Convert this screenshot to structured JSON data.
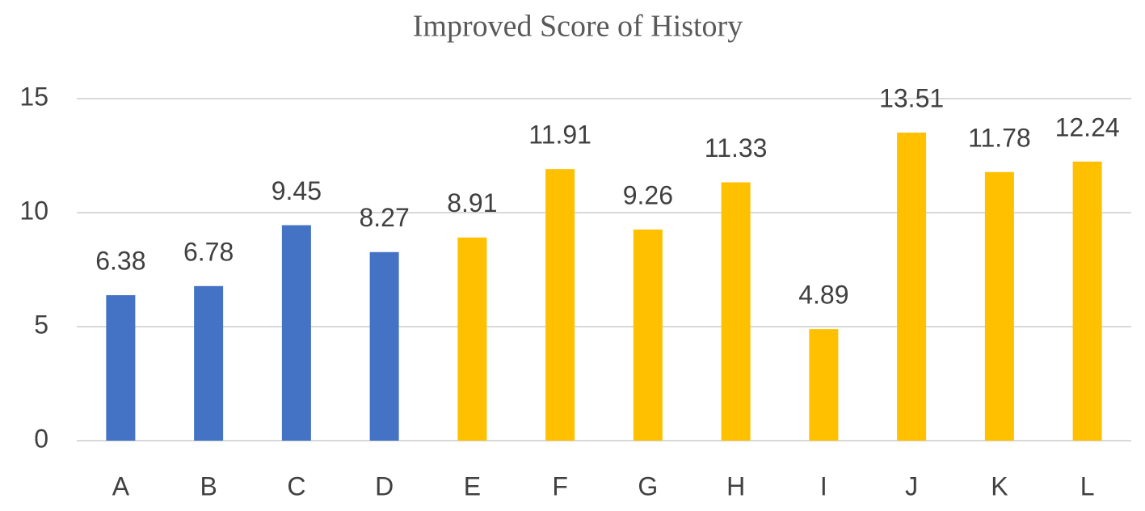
{
  "chart_data": {
    "type": "bar",
    "title": "Improved Score of History",
    "categories": [
      "A",
      "B",
      "C",
      "D",
      "E",
      "F",
      "G",
      "H",
      "I",
      "J",
      "K",
      "L"
    ],
    "values": [
      6.38,
      6.78,
      9.45,
      8.27,
      8.91,
      11.91,
      9.26,
      11.33,
      4.89,
      13.51,
      11.78,
      12.24
    ],
    "colors": [
      "#4472c4",
      "#4472c4",
      "#4472c4",
      "#4472c4",
      "#ffc000",
      "#ffc000",
      "#ffc000",
      "#ffc000",
      "#ffc000",
      "#ffc000",
      "#ffc000",
      "#ffc000"
    ],
    "ylim": [
      0,
      15
    ],
    "yticks": [
      0,
      5,
      10,
      15
    ],
    "grid": true,
    "data_labels": true
  }
}
